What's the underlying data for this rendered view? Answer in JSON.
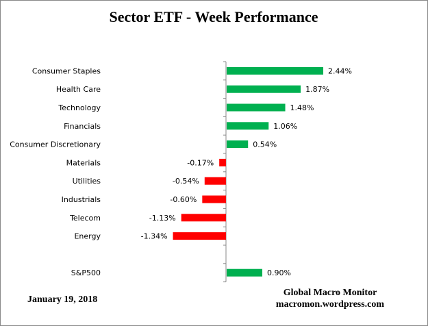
{
  "chart_data": {
    "type": "bar",
    "orientation": "horizontal",
    "title": "Sector ETF - Week Performance",
    "categories": [
      "Consumer Staples",
      "Health Care",
      "Technology",
      "Financials",
      "Consumer Discretionary",
      "Materials",
      "Utilities",
      "Industrials",
      "Telecom",
      "Energy",
      "",
      "S&P500"
    ],
    "values": [
      2.44,
      1.87,
      1.48,
      1.06,
      0.54,
      -0.17,
      -0.54,
      -0.6,
      -1.13,
      -1.34,
      null,
      0.9
    ],
    "data_labels": [
      "2.44%",
      "1.87%",
      "1.48%",
      "1.06%",
      "0.54%",
      "-0.17%",
      "-0.54%",
      "-0.60%",
      "-1.13%",
      "-1.34%",
      "",
      "0.90%"
    ],
    "xlabel": "",
    "ylabel": "",
    "grid": false,
    "legend": "none",
    "colors": {
      "positive": "#00B050",
      "negative": "#FF0000"
    }
  },
  "footer": {
    "date": "January 19, 2018",
    "source_name": "Global Macro Monitor",
    "source_site": "macromon.wordpress.com"
  }
}
